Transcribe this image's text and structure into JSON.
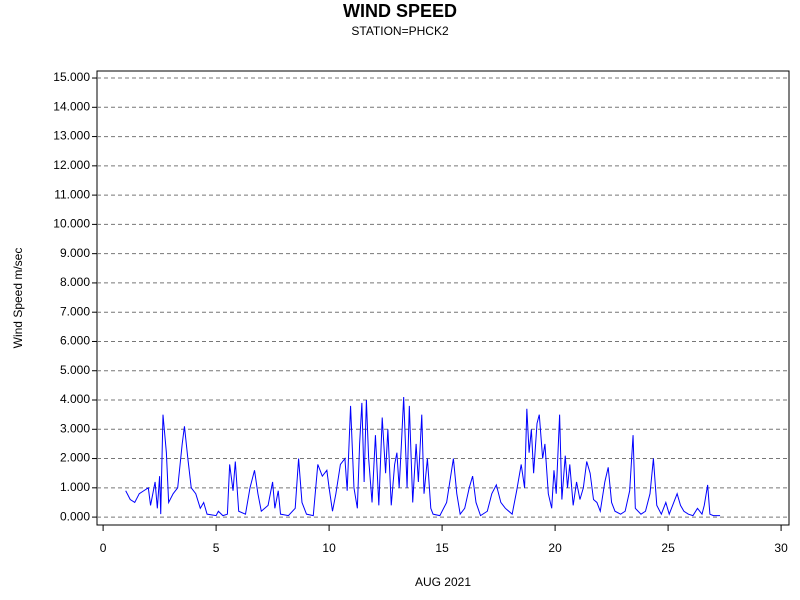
{
  "chart_data": {
    "type": "line",
    "title": "WIND SPEED",
    "subtitle": "STATION=PHCK2",
    "x_label": "AUG 2021",
    "y_label": "Wind Speed m/sec",
    "xlim": [
      -0.27,
      30.35
    ],
    "ylim": [
      -0.27,
      15.24
    ],
    "grid": true,
    "xticks": [
      0,
      5,
      10,
      15,
      20,
      25,
      30
    ],
    "yticks": [
      {
        "value": 0,
        "label": "0.000"
      },
      {
        "value": 1,
        "label": "1.000"
      },
      {
        "value": 2,
        "label": "2.000"
      },
      {
        "value": 3,
        "label": "3.000"
      },
      {
        "value": 4,
        "label": "4.000"
      },
      {
        "value": 5,
        "label": "5.000"
      },
      {
        "value": 6,
        "label": "6.000"
      },
      {
        "value": 7,
        "label": "7.000"
      },
      {
        "value": 8,
        "label": "8.000"
      },
      {
        "value": 9,
        "label": "9.000"
      },
      {
        "value": 10,
        "label": "10.000"
      },
      {
        "value": 11,
        "label": "11.000"
      },
      {
        "value": 12,
        "label": "12.000"
      },
      {
        "value": 13,
        "label": "13.000"
      },
      {
        "value": 14,
        "label": "14.000"
      },
      {
        "value": 15,
        "label": "15.000"
      }
    ],
    "x": [
      1.0,
      1.2,
      1.4,
      1.6,
      1.8,
      2.0,
      2.1,
      2.3,
      2.4,
      2.5,
      2.55,
      2.65,
      2.8,
      2.9,
      3.1,
      3.3,
      3.5,
      3.6,
      3.75,
      3.9,
      4.1,
      4.3,
      4.45,
      4.6,
      5.0,
      5.1,
      5.3,
      5.5,
      5.6,
      5.75,
      5.85,
      6.0,
      6.3,
      6.5,
      6.7,
      6.85,
      7.0,
      7.3,
      7.5,
      7.6,
      7.75,
      7.85,
      8.2,
      8.5,
      8.65,
      8.8,
      9.0,
      9.3,
      9.5,
      9.7,
      9.9,
      10.0,
      10.15,
      10.3,
      10.5,
      10.7,
      10.8,
      10.95,
      11.1,
      11.25,
      11.35,
      11.45,
      11.55,
      11.65,
      11.75,
      11.9,
      12.05,
      12.2,
      12.35,
      12.5,
      12.6,
      12.75,
      12.9,
      13.0,
      13.1,
      13.2,
      13.3,
      13.45,
      13.55,
      13.7,
      13.85,
      13.95,
      14.1,
      14.2,
      14.35,
      14.5,
      14.6,
      14.9,
      15.2,
      15.4,
      15.5,
      15.65,
      15.8,
      16.0,
      16.2,
      16.35,
      16.5,
      16.7,
      17.0,
      17.2,
      17.4,
      17.6,
      17.8,
      18.1,
      18.3,
      18.5,
      18.65,
      18.75,
      18.85,
      18.95,
      19.05,
      19.2,
      19.3,
      19.45,
      19.55,
      19.7,
      19.85,
      19.95,
      20.05,
      20.2,
      20.3,
      20.45,
      20.55,
      20.65,
      20.8,
      20.95,
      21.1,
      21.25,
      21.4,
      21.55,
      21.7,
      21.85,
      22.0,
      22.2,
      22.35,
      22.5,
      22.65,
      22.9,
      23.1,
      23.3,
      23.45,
      23.55,
      23.8,
      24.0,
      24.2,
      24.35,
      24.5,
      24.7,
      24.9,
      25.05,
      25.2,
      25.4,
      25.55,
      25.7,
      25.9,
      26.1,
      26.3,
      26.5,
      26.6,
      26.75,
      26.85,
      27.0,
      27.3
    ],
    "series": [
      {
        "name": "Wind Speed",
        "color": "#0000ff",
        "values": [
          0.9,
          0.6,
          0.5,
          0.8,
          0.9,
          1.0,
          0.4,
          1.2,
          0.3,
          1.4,
          0.1,
          3.5,
          2.2,
          0.5,
          0.8,
          1.0,
          2.5,
          3.1,
          2.0,
          1.0,
          0.8,
          0.3,
          0.5,
          0.1,
          0.05,
          0.2,
          0.05,
          0.1,
          1.8,
          0.9,
          1.9,
          0.2,
          0.1,
          1.0,
          1.6,
          0.8,
          0.2,
          0.4,
          1.2,
          0.3,
          0.9,
          0.1,
          0.05,
          0.3,
          2.0,
          0.5,
          0.1,
          0.05,
          1.8,
          1.4,
          1.6,
          1.0,
          0.2,
          0.8,
          1.8,
          2.0,
          0.9,
          3.8,
          1.0,
          0.3,
          2.5,
          3.9,
          1.2,
          4.0,
          2.0,
          0.5,
          2.8,
          0.4,
          3.4,
          1.5,
          3.0,
          0.4,
          1.8,
          2.2,
          1.0,
          2.5,
          4.1,
          1.0,
          3.8,
          0.5,
          2.5,
          1.2,
          3.5,
          0.8,
          2.0,
          0.3,
          0.1,
          0.05,
          0.5,
          1.5,
          2.0,
          0.8,
          0.1,
          0.3,
          1.0,
          1.4,
          0.5,
          0.05,
          0.2,
          0.8,
          1.1,
          0.5,
          0.3,
          0.1,
          0.9,
          1.8,
          1.0,
          3.7,
          2.2,
          3.0,
          1.5,
          3.2,
          3.5,
          2.0,
          2.5,
          0.8,
          0.3,
          1.6,
          0.8,
          3.5,
          0.6,
          2.1,
          1.0,
          1.8,
          0.4,
          1.2,
          0.6,
          1.0,
          1.9,
          1.5,
          0.6,
          0.5,
          0.2,
          1.2,
          1.7,
          0.5,
          0.2,
          0.1,
          0.2,
          0.9,
          2.8,
          0.3,
          0.1,
          0.2,
          0.8,
          2.0,
          0.4,
          0.1,
          0.5,
          0.1,
          0.4,
          0.8,
          0.4,
          0.2,
          0.1,
          0.05,
          0.3,
          0.1,
          0.4,
          1.1,
          0.1,
          0.05,
          0.05
        ]
      }
    ]
  }
}
